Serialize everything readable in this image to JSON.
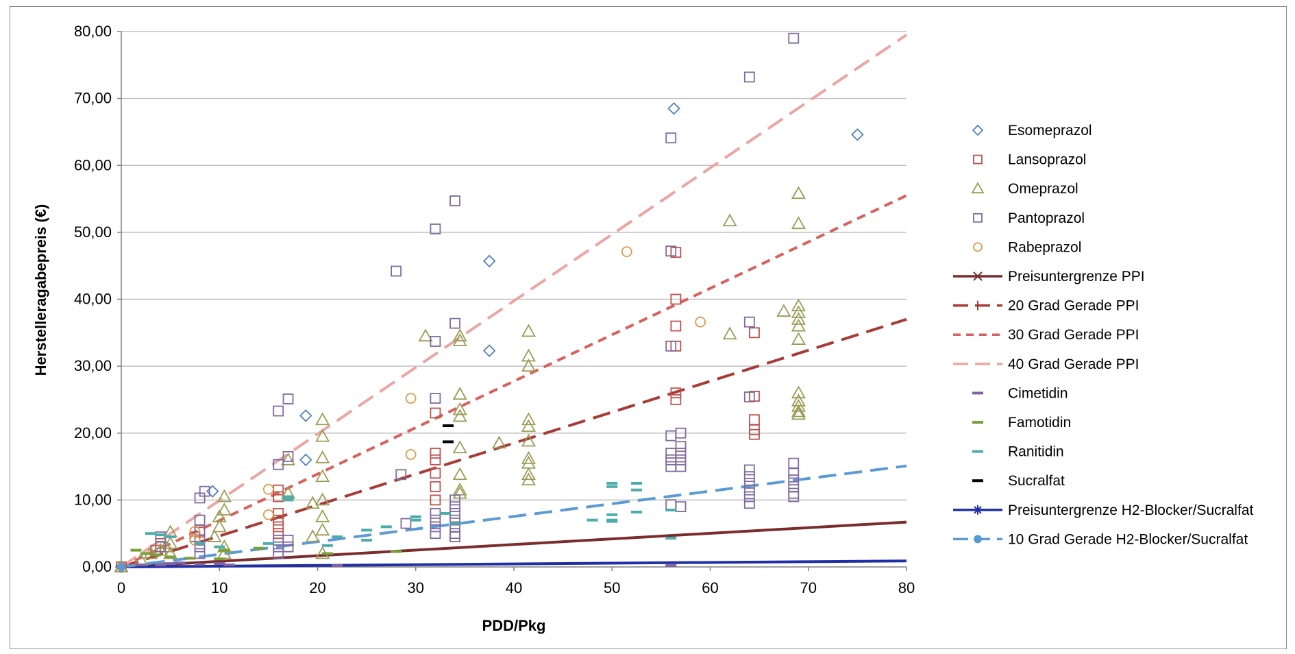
{
  "chart_data": {
    "type": "scatter",
    "title": "",
    "xlabel": "PDD/Pkg",
    "ylabel": "Herstelleragabepreis (€)",
    "xlim": [
      0,
      80
    ],
    "ylim": [
      0,
      80
    ],
    "x_ticks": [
      "0",
      "10",
      "20",
      "30",
      "40",
      "50",
      "60",
      "70",
      "80"
    ],
    "y_ticks": [
      "0,00",
      "10,00",
      "20,00",
      "30,00",
      "40,00",
      "50,00",
      "60,00",
      "70,00",
      "80,00"
    ],
    "grid": "horizontal major",
    "legend_position": "right",
    "colors": {
      "esomeprazol": "#4f81bd",
      "lansoprazol": "#c0504d",
      "omeprazol": "#9b9b55",
      "pantoprazol": "#7f6a9f",
      "rabeprazol": "#e09a4d",
      "cimetidin": "#8064a2",
      "famotidin": "#7aa03a",
      "ranitidin": "#4bacac",
      "sucralfat": "#000000",
      "preisuntergrenze_ppi": "#7b2c2c",
      "grad20": "#a83a36",
      "grad30": "#d9605c",
      "grad40": "#eba5a3",
      "preisuntergrenze_h2": "#1f2fa5",
      "grad10_h2": "#5a9bd5"
    },
    "series": [
      {
        "name": "Esomeprazol",
        "kind": "scatter",
        "marker": "diamond",
        "color": "#4f81bd",
        "points": [
          [
            0,
            0
          ],
          [
            9.3,
            11.3
          ],
          [
            18.8,
            22.6
          ],
          [
            18.8,
            16.0
          ],
          [
            37.5,
            32.3
          ],
          [
            37.5,
            45.7
          ],
          [
            56.3,
            68.5
          ],
          [
            75,
            64.6
          ]
        ]
      },
      {
        "name": "Lansoprazol",
        "kind": "scatter",
        "marker": "square",
        "color": "#c0504d",
        "points": [
          [
            0,
            0
          ],
          [
            3.5,
            2.5
          ],
          [
            4,
            3.5
          ],
          [
            7.5,
            4.5
          ],
          [
            8,
            5.2
          ],
          [
            16,
            11.5
          ],
          [
            16,
            10.5
          ],
          [
            16,
            8
          ],
          [
            16,
            7
          ],
          [
            16,
            6
          ],
          [
            16,
            5
          ],
          [
            32,
            23
          ],
          [
            32,
            17
          ],
          [
            32,
            16
          ],
          [
            32,
            14
          ],
          [
            32,
            12
          ],
          [
            32,
            10
          ],
          [
            56.5,
            47
          ],
          [
            56.5,
            40
          ],
          [
            56.5,
            36
          ],
          [
            56.5,
            33
          ],
          [
            56.5,
            26
          ],
          [
            56.5,
            25
          ],
          [
            64.5,
            35
          ],
          [
            64.5,
            25.5
          ],
          [
            64.5,
            22
          ],
          [
            64.5,
            20.5
          ],
          [
            64.5,
            19.8
          ]
        ]
      },
      {
        "name": "Omeprazol",
        "kind": "scatter",
        "marker": "triangle",
        "color": "#9b9b55",
        "points": [
          [
            0,
            0
          ],
          [
            2,
            1
          ],
          [
            3,
            2
          ],
          [
            4,
            2.5
          ],
          [
            4.5,
            3
          ],
          [
            5,
            3.5
          ],
          [
            5,
            5.2
          ],
          [
            5,
            2
          ],
          [
            9.5,
            4.5
          ],
          [
            10,
            6
          ],
          [
            10,
            7.5
          ],
          [
            10.5,
            8.5
          ],
          [
            10.5,
            10.5
          ],
          [
            10.5,
            3
          ],
          [
            10.5,
            2
          ],
          [
            17,
            16
          ],
          [
            17,
            11
          ],
          [
            19.5,
            9.5
          ],
          [
            19.5,
            4.5
          ],
          [
            20.5,
            22
          ],
          [
            20.5,
            19.5
          ],
          [
            20.5,
            16.3
          ],
          [
            20.5,
            13.5
          ],
          [
            20.5,
            10
          ],
          [
            20.5,
            7.5
          ],
          [
            20.5,
            5.5
          ],
          [
            20.5,
            2
          ],
          [
            31,
            34.5
          ],
          [
            34.5,
            34.5
          ],
          [
            34.5,
            33.8
          ],
          [
            34.5,
            25.8
          ],
          [
            34.5,
            23.5
          ],
          [
            34.5,
            22.5
          ],
          [
            34.5,
            17.8
          ],
          [
            34.5,
            13.8
          ],
          [
            34.5,
            11.5
          ],
          [
            34.5,
            11
          ],
          [
            38.5,
            18.5
          ],
          [
            41.5,
            35.2
          ],
          [
            41.5,
            31.5
          ],
          [
            41.5,
            30
          ],
          [
            41.5,
            22
          ],
          [
            41.5,
            21
          ],
          [
            41.5,
            18.8
          ],
          [
            41.5,
            16.2
          ],
          [
            41.5,
            15.5
          ],
          [
            41.5,
            13.8
          ],
          [
            41.5,
            13
          ],
          [
            62,
            51.7
          ],
          [
            62,
            34.8
          ],
          [
            67.5,
            38.2
          ],
          [
            69,
            55.8
          ],
          [
            69,
            51.3
          ],
          [
            69,
            39
          ],
          [
            69,
            38
          ],
          [
            69,
            37
          ],
          [
            69,
            36
          ],
          [
            69,
            34
          ],
          [
            69,
            26
          ],
          [
            69,
            24.8
          ],
          [
            69,
            24
          ],
          [
            69,
            23.2
          ],
          [
            69,
            22.8
          ]
        ]
      },
      {
        "name": "Pantoprazol",
        "kind": "scatter",
        "marker": "square",
        "color": "#7f6a9f",
        "points": [
          [
            4,
            4.5
          ],
          [
            4,
            3
          ],
          [
            8,
            10.3
          ],
          [
            8,
            7
          ],
          [
            8,
            5.5
          ],
          [
            8,
            4
          ],
          [
            8,
            3
          ],
          [
            8,
            2
          ],
          [
            8.5,
            11.3
          ],
          [
            16,
            23.3
          ],
          [
            16,
            15.3
          ],
          [
            16,
            4
          ],
          [
            16,
            3
          ],
          [
            16,
            2
          ],
          [
            17,
            25.1
          ],
          [
            17,
            16.5
          ],
          [
            17,
            4
          ],
          [
            17,
            3
          ],
          [
            28,
            44.2
          ],
          [
            28.5,
            13.8
          ],
          [
            29,
            6.5
          ],
          [
            32,
            50.5
          ],
          [
            32,
            33.7
          ],
          [
            32,
            25.2
          ],
          [
            32,
            8
          ],
          [
            32,
            7
          ],
          [
            32,
            6
          ],
          [
            32,
            5
          ],
          [
            34,
            54.7
          ],
          [
            34,
            36.4
          ],
          [
            34,
            10
          ],
          [
            34,
            9
          ],
          [
            34,
            8
          ],
          [
            34,
            7
          ],
          [
            34,
            6
          ],
          [
            34,
            5
          ],
          [
            34,
            4.5
          ],
          [
            56,
            64.1
          ],
          [
            56,
            47.2
          ],
          [
            56,
            33
          ],
          [
            56,
            19.6
          ],
          [
            56,
            17
          ],
          [
            56,
            16
          ],
          [
            56,
            15
          ],
          [
            56,
            9.3
          ],
          [
            57,
            20
          ],
          [
            57,
            18
          ],
          [
            57,
            17
          ],
          [
            57,
            16
          ],
          [
            57,
            15
          ],
          [
            57,
            9
          ],
          [
            64,
            73.2
          ],
          [
            64,
            36.6
          ],
          [
            64,
            25.4
          ],
          [
            64,
            14.5
          ],
          [
            64,
            13.5
          ],
          [
            64,
            12.5
          ],
          [
            64,
            11.5
          ],
          [
            64,
            10.5
          ],
          [
            64,
            9.5
          ],
          [
            68.5,
            79
          ],
          [
            68.5,
            15.5
          ],
          [
            68.5,
            14
          ],
          [
            68.5,
            13
          ],
          [
            68.5,
            12
          ],
          [
            68.5,
            11
          ],
          [
            68.5,
            10.5
          ]
        ]
      },
      {
        "name": "Rabeprazol",
        "kind": "scatter",
        "marker": "circle",
        "color": "#e09a4d",
        "points": [
          [
            15,
            11.6
          ],
          [
            15,
            7.8
          ],
          [
            29.5,
            25.2
          ],
          [
            29.5,
            16.8
          ],
          [
            51.5,
            47.1
          ],
          [
            59,
            36.6
          ],
          [
            7.5,
            5.3
          ],
          [
            7.5,
            4
          ]
        ]
      },
      {
        "name": "Preisuntergrenze PPI",
        "kind": "line",
        "dash": "solid",
        "color": "#7b2c2c",
        "points": [
          [
            0,
            0
          ],
          [
            80,
            6.7
          ]
        ]
      },
      {
        "name": "20 Grad Gerade PPI",
        "kind": "line",
        "dash": "long",
        "color": "#a83a36",
        "points": [
          [
            0,
            0
          ],
          [
            80,
            37.0
          ]
        ]
      },
      {
        "name": "30 Grad Gerade PPI",
        "kind": "line",
        "dash": "short",
        "color": "#d9605c",
        "points": [
          [
            0,
            0
          ],
          [
            80,
            55.5
          ]
        ]
      },
      {
        "name": "40 Grad Gerade PPI",
        "kind": "line",
        "dash": "long",
        "color": "#eba5a3",
        "points": [
          [
            0,
            0
          ],
          [
            80,
            79.5
          ]
        ]
      },
      {
        "name": "Cimetidin",
        "kind": "scatter",
        "marker": "dash",
        "color": "#8064a2",
        "points": [
          [
            2,
            0.3
          ],
          [
            4,
            0.3
          ],
          [
            5,
            0.5
          ],
          [
            6,
            0.6
          ],
          [
            8,
            0.4
          ],
          [
            10,
            0.5
          ],
          [
            11,
            0.3
          ],
          [
            22,
            0.2
          ],
          [
            56,
            0.2
          ]
        ]
      },
      {
        "name": "Famotidin",
        "kind": "scatter",
        "marker": "dash",
        "color": "#7aa03a",
        "points": [
          [
            1.5,
            2.5
          ],
          [
            2.5,
            2.0
          ],
          [
            3.5,
            1.8
          ],
          [
            5,
            1.5
          ],
          [
            7,
            1.3
          ],
          [
            10,
            1.2
          ],
          [
            10.5,
            2.5
          ],
          [
            14,
            2.8
          ],
          [
            21,
            2.0
          ],
          [
            28,
            2.3
          ]
        ]
      },
      {
        "name": "Ranitidin",
        "kind": "scatter",
        "marker": "dash",
        "color": "#4bacac",
        "points": [
          [
            3,
            5
          ],
          [
            4,
            4.8
          ],
          [
            5,
            4.5
          ],
          [
            8,
            3.5
          ],
          [
            10,
            3.0
          ],
          [
            15,
            3.5
          ],
          [
            17,
            10.5
          ],
          [
            17,
            10.0
          ],
          [
            21,
            3.2
          ],
          [
            22,
            4.5
          ],
          [
            25,
            5.5
          ],
          [
            25,
            4.0
          ],
          [
            27,
            6.0
          ],
          [
            30,
            7.5
          ],
          [
            30,
            7.0
          ],
          [
            33,
            8.0
          ],
          [
            34,
            6.5
          ],
          [
            50,
            12.5
          ],
          [
            50,
            12.0
          ],
          [
            50,
            7.8
          ],
          [
            50,
            7.0
          ],
          [
            50,
            6.8
          ],
          [
            48,
            7.0
          ],
          [
            52.5,
            12.5
          ],
          [
            52.5,
            11.5
          ],
          [
            52.5,
            8.2
          ],
          [
            56,
            8.5
          ],
          [
            56,
            4.3
          ]
        ]
      },
      {
        "name": "Sucralfat",
        "kind": "scatter",
        "marker": "dash",
        "color": "#000000",
        "points": [
          [
            33.3,
            21.1
          ],
          [
            33.3,
            18.7
          ]
        ]
      },
      {
        "name": "Preisuntergrenze H2-Blocker/Sucralfat",
        "kind": "line",
        "dash": "solid",
        "color": "#1f2fa5",
        "points": [
          [
            0,
            0
          ],
          [
            80,
            0.9
          ]
        ]
      },
      {
        "name": "10 Grad Gerade H2-Blocker/Sucralfat",
        "kind": "line",
        "dash": "long",
        "color": "#5a9bd5",
        "points": [
          [
            0,
            0
          ],
          [
            80,
            15.1
          ]
        ]
      }
    ],
    "legend": [
      {
        "label": "Esomeprazol",
        "icon": "diamond",
        "color": "#4f81bd"
      },
      {
        "label": "Lansoprazol",
        "icon": "square",
        "color": "#c0504d"
      },
      {
        "label": "Omeprazol",
        "icon": "triangle",
        "color": "#9b9b55"
      },
      {
        "label": "Pantoprazol",
        "icon": "square",
        "color": "#7f6a9f"
      },
      {
        "label": "Rabeprazol",
        "icon": "circle",
        "color": "#e09a4d"
      },
      {
        "label": "Preisuntergrenze PPI",
        "icon": "line-x",
        "color": "#7b2c2c"
      },
      {
        "label": "20 Grad Gerade PPI",
        "icon": "line-plus-dash",
        "color": "#a83a36"
      },
      {
        "label": "30 Grad Gerade PPI",
        "icon": "line-short-dash",
        "color": "#d9605c"
      },
      {
        "label": "40 Grad Gerade PPI",
        "icon": "line-long-dash",
        "color": "#eba5a3"
      },
      {
        "label": "Cimetidin",
        "icon": "dash",
        "color": "#8064a2"
      },
      {
        "label": "Famotidin",
        "icon": "dash",
        "color": "#7aa03a"
      },
      {
        "label": "Ranitidin",
        "icon": "dash",
        "color": "#4bacac"
      },
      {
        "label": "Sucralfat",
        "icon": "dash",
        "color": "#000000"
      },
      {
        "label": "Preisuntergrenze H2-Blocker/Sucralfat",
        "icon": "line-star",
        "color": "#1f2fa5"
      },
      {
        "label": "10 Grad Gerade H2-Blocker/Sucralfat",
        "icon": "line-circle-dash",
        "color": "#5a9bd5"
      }
    ]
  }
}
